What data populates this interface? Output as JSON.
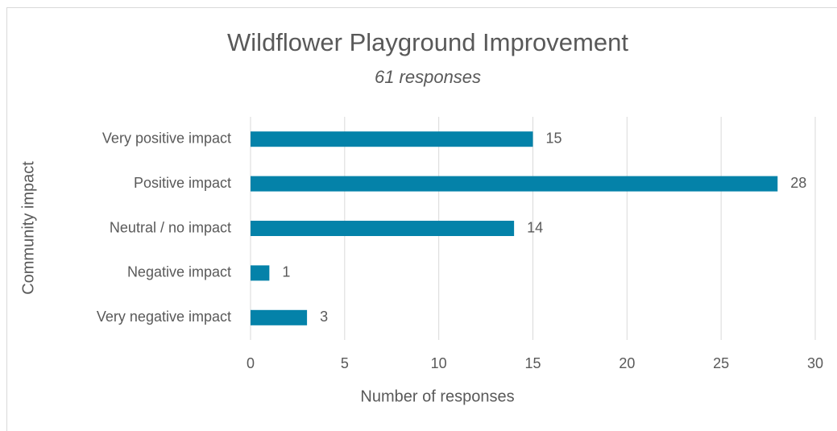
{
  "chart_data": {
    "type": "bar",
    "orientation": "horizontal",
    "title": "Wildflower Playground Improvement",
    "subtitle": "61 responses",
    "x_label": "Number of responses",
    "y_label": "Community impact",
    "categories": [
      "Very positive impact",
      "Positive impact",
      "Neutral / no impact",
      "Negative impact",
      "Very negative impact"
    ],
    "values": [
      15,
      28,
      14,
      1,
      3
    ],
    "color": "#0482a9",
    "xlim": [
      0,
      30
    ],
    "xticks": [
      0,
      5,
      10,
      15,
      20,
      25,
      30
    ],
    "grid": true
  }
}
